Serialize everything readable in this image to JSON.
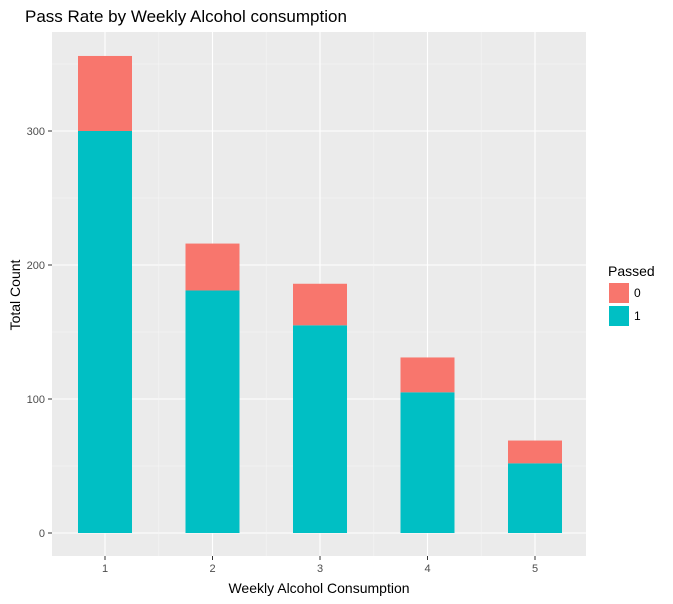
{
  "chart_data": {
    "type": "bar",
    "stacked": true,
    "title": "Pass Rate by Weekly Alcohol consumption",
    "xlabel": "Weekly Alcohol Consumption",
    "ylabel": "Total Count",
    "categories": [
      "1",
      "2",
      "3",
      "4",
      "5"
    ],
    "series": [
      {
        "name": "1",
        "values": [
          300,
          181,
          155,
          105,
          52
        ],
        "color": "#00BFC4"
      },
      {
        "name": "0",
        "values": [
          56,
          35,
          31,
          26,
          17
        ],
        "color": "#F8766D"
      }
    ],
    "ylim": [
      0,
      372
    ],
    "yticks": [
      0,
      100,
      200,
      300
    ],
    "ytick_labels": [
      "0",
      "100",
      "200",
      "300"
    ],
    "grid": true,
    "panel_background": "#EBEBEB",
    "legend": {
      "title": "Passed",
      "placement": "right",
      "entries": [
        {
          "label": "0",
          "color": "#F8766D"
        },
        {
          "label": "1",
          "color": "#00BFC4"
        }
      ]
    }
  }
}
